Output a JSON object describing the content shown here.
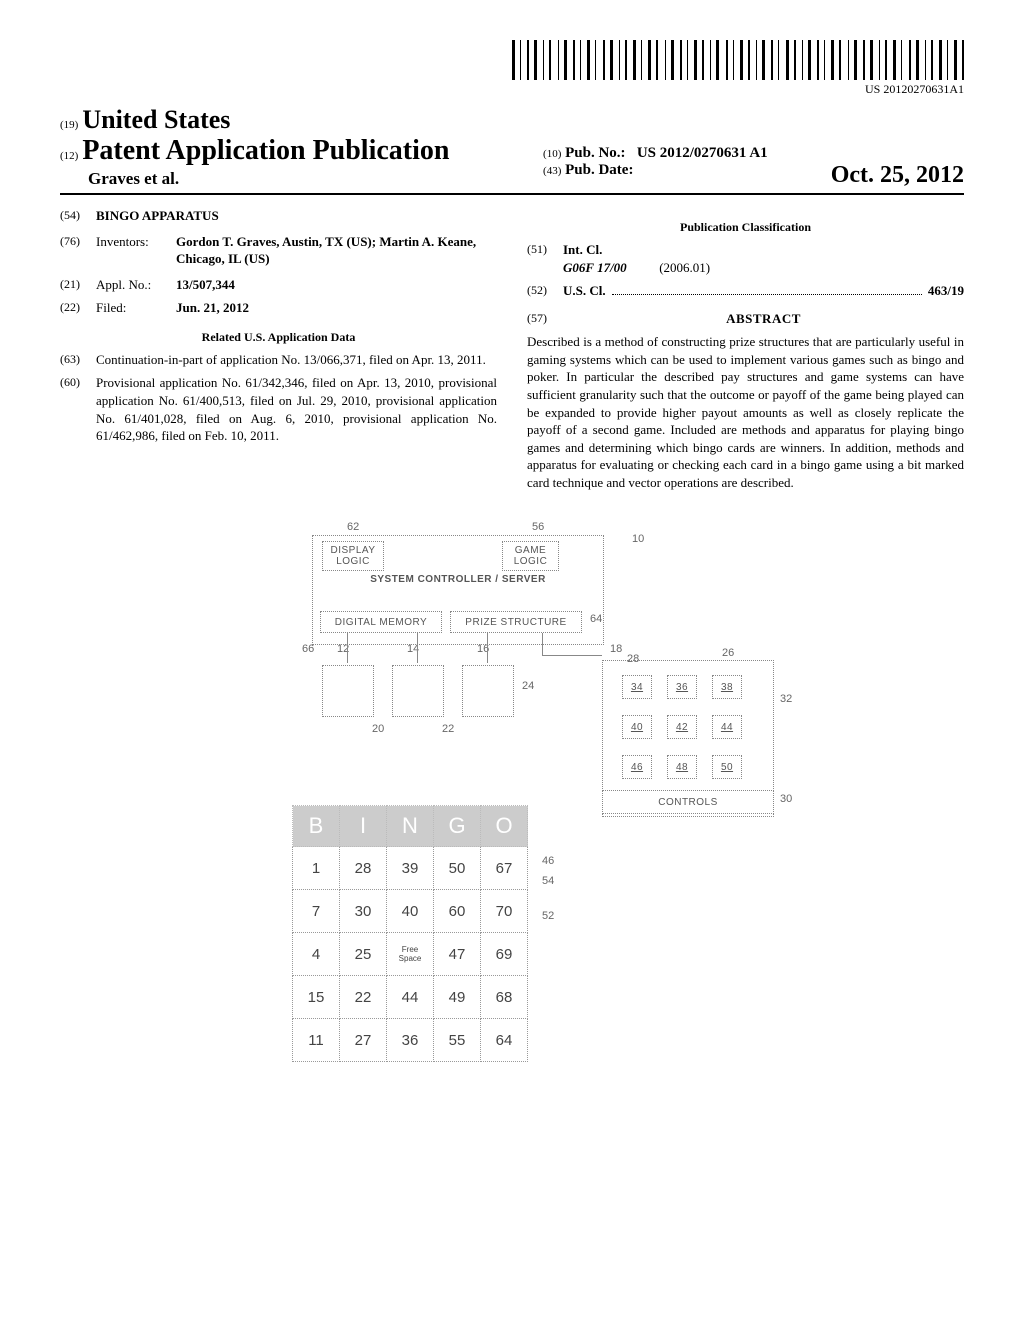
{
  "header": {
    "country_prefix": "(19)",
    "country": "United States",
    "pub_type_prefix": "(12)",
    "pub_type": "Patent Application Publication",
    "authors": "Graves et al.",
    "pub_no_prefix": "(10)",
    "pub_no_label": "Pub. No.:",
    "pub_no": "US 2012/0270631 A1",
    "pub_date_prefix": "(43)",
    "pub_date_label": "Pub. Date:",
    "pub_date": "Oct. 25, 2012",
    "barcode_text": "US 20120270631A1"
  },
  "left_col": {
    "title_num": "(54)",
    "title": "BINGO APPARATUS",
    "inventors_num": "(76)",
    "inventors_label": "Inventors:",
    "inventors": "Gordon T. Graves, Austin, TX (US); Martin A. Keane, Chicago, IL (US)",
    "appl_num": "(21)",
    "appl_label": "Appl. No.:",
    "appl_val": "13/507,344",
    "filed_num": "(22)",
    "filed_label": "Filed:",
    "filed_val": "Jun. 21, 2012",
    "related_heading": "Related U.S. Application Data",
    "cont_num": "(63)",
    "cont_text": "Continuation-in-part of application No. 13/066,371, filed on Apr. 13, 2011.",
    "prov_num": "(60)",
    "prov_text": "Provisional application No. 61/342,346, filed on Apr. 13, 2010, provisional application No. 61/400,513, filed on Jul. 29, 2010, provisional application No. 61/401,028, filed on Aug. 6, 2010, provisional application No. 61/462,986, filed on Feb. 10, 2011."
  },
  "right_col": {
    "classification_heading": "Publication Classification",
    "intcl_num": "(51)",
    "intcl_label": "Int. Cl.",
    "intcl_code": "G06F 17/00",
    "intcl_date": "(2006.01)",
    "uscl_num": "(52)",
    "uscl_label": "U.S. Cl.",
    "uscl_val": "463/19",
    "abstract_num": "(57)",
    "abstract_label": "ABSTRACT",
    "abstract": "Described is a method of constructing prize structures that are particularly useful in gaming systems which can be used to implement various games such as bingo and poker. In particular the described pay structures and game systems can have sufficient granularity such that the outcome or payoff of the game being played can be expanded to provide higher payout amounts as well as closely replicate the payoff of a second game. Included are methods and apparatus for playing bingo games and determining which bingo cards are winners. In addition, methods and apparatus for evaluating or checking each card in a bingo game using a bit marked card technique and vector operations are described."
  },
  "figure": {
    "boxes": {
      "display_logic": "DISPLAY LOGIC",
      "game_logic": "GAME LOGIC",
      "system": "SYSTEM CONTROLLER / SERVER",
      "digital_memory": "DIGITAL MEMORY",
      "prize_structure": "PRIZE STRUCTURE",
      "controls": "CONTROLS"
    },
    "refs": {
      "r62": "62",
      "r56": "56",
      "r10": "10",
      "r64": "64",
      "r18": "18",
      "r66": "66",
      "r12": "12",
      "r14": "14",
      "r16": "16",
      "r28": "28",
      "r26": "26",
      "r24": "24",
      "r32": "32",
      "r20": "20",
      "r22": "22",
      "r30": "30",
      "r46": "46",
      "r54": "54",
      "r52": "52",
      "g34": "34",
      "g36": "36",
      "g38": "38",
      "g40": "40",
      "g42": "42",
      "g44": "44",
      "g46": "46",
      "g48": "48",
      "g50": "50"
    },
    "bingo": {
      "headers": [
        "B",
        "I",
        "N",
        "G",
        "O"
      ],
      "rows": [
        [
          "1",
          "28",
          "39",
          "50",
          "67"
        ],
        [
          "7",
          "30",
          "40",
          "60",
          "70"
        ],
        [
          "4",
          "25",
          "Free Space",
          "47",
          "69"
        ],
        [
          "15",
          "22",
          "44",
          "49",
          "68"
        ],
        [
          "11",
          "27",
          "36",
          "55",
          "64"
        ]
      ]
    }
  }
}
